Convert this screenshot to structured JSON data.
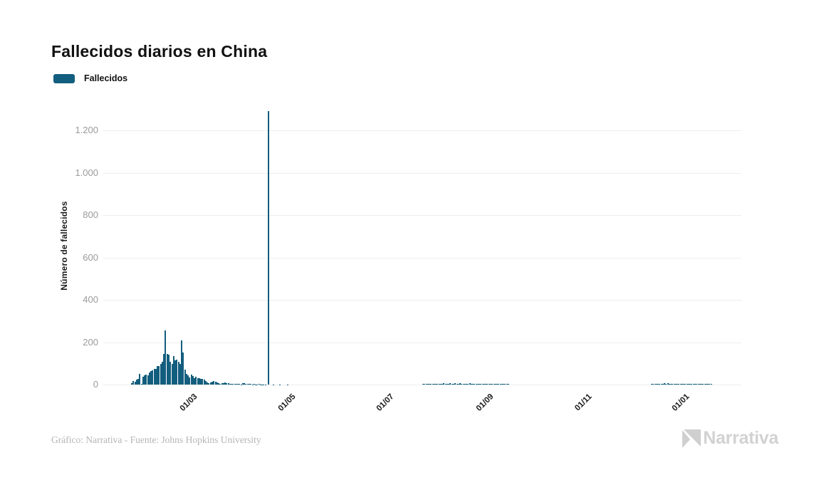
{
  "page": {
    "title": "Fallecidos diarios en China"
  },
  "legend": {
    "label": "Fallecidos",
    "swatch_color": "#135E7E"
  },
  "footer": {
    "credit": "Gráfico: Narrativa - Fuente: Johns Hopkins University",
    "brand": "Narrativa"
  },
  "chart_data": {
    "type": "bar",
    "title": "Fallecidos diarios en China",
    "xlabel": "",
    "ylabel": "Número de fallecidos",
    "series_name": "Fallecidos",
    "bar_color": "#135E7E",
    "grid": true,
    "legend_position": "top-left",
    "ylim": [
      0,
      1300
    ],
    "y_ticks": [
      0,
      200,
      400,
      600,
      800,
      1000,
      1200
    ],
    "y_tick_labels": [
      "0",
      "200",
      "400",
      "600",
      "800",
      "1.000",
      "1.200"
    ],
    "x_tick_labels": [
      "01/03",
      "01/05",
      "01/07",
      "01/09",
      "01/11",
      "01/01"
    ],
    "x_ticks": [
      {
        "label": "01/03",
        "day_index": 38
      },
      {
        "label": "01/05",
        "day_index": 99
      },
      {
        "label": "01/07",
        "day_index": 160
      },
      {
        "label": "01/09",
        "day_index": 222
      },
      {
        "label": "01/11",
        "day_index": 283
      },
      {
        "label": "01/01",
        "day_index": 344
      }
    ],
    "start_date": "2020-01-23",
    "end_date": "2021-01-17",
    "notable_points": [
      {
        "date": "2020-02-13",
        "value": 254
      },
      {
        "date": "2020-02-23",
        "value": 210
      },
      {
        "date": "2020-04-17",
        "value": 1290
      }
    ],
    "values": [
      8,
      16,
      15,
      24,
      26,
      49,
      2,
      38,
      43,
      46,
      45,
      58,
      64,
      66,
      73,
      73,
      86,
      89,
      97,
      108,
      146,
      254,
      143,
      142,
      106,
      98,
      136,
      115,
      118,
      109,
      97,
      210,
      150,
      71,
      52,
      44,
      35,
      47,
      42,
      31,
      38,
      31,
      30,
      28,
      27,
      22,
      17,
      11,
      7,
      11,
      13,
      16,
      14,
      11,
      8,
      3,
      7,
      6,
      9,
      7,
      6,
      5,
      4,
      5,
      3,
      3,
      5,
      4,
      1,
      7,
      6,
      4,
      3,
      2,
      2,
      1,
      2,
      1,
      1,
      2,
      1,
      1,
      1,
      1,
      0,
      1290,
      0,
      0,
      1,
      0,
      0,
      0,
      1,
      0,
      0,
      0,
      0,
      1,
      0,
      0,
      0,
      0,
      0,
      0,
      0,
      0,
      0,
      0,
      0,
      0,
      0,
      0,
      0,
      0,
      0,
      0,
      0,
      0,
      0,
      0,
      0,
      0,
      0,
      0,
      0,
      0,
      0,
      0,
      0,
      0,
      0,
      0,
      0,
      0,
      0,
      0,
      0,
      0,
      0,
      0,
      0,
      0,
      0,
      0,
      0,
      0,
      0,
      0,
      0,
      0,
      0,
      0,
      0,
      0,
      0,
      0,
      0,
      0,
      0,
      0,
      0,
      0,
      0,
      0,
      0,
      0,
      0,
      0,
      0,
      0,
      0,
      0,
      0,
      0,
      0,
      0,
      0,
      0,
      0,
      0,
      0,
      2,
      3,
      2,
      4,
      3,
      2,
      5,
      4,
      3,
      2,
      4,
      5,
      3,
      6,
      4,
      3,
      5,
      6,
      4,
      3,
      7,
      5,
      4,
      6,
      5,
      4,
      3,
      5,
      4,
      6,
      5,
      3,
      4,
      5,
      3,
      4,
      3,
      2,
      3,
      2,
      3,
      4,
      3,
      5,
      4,
      3,
      4,
      2,
      3,
      4,
      2,
      3,
      5,
      4,
      0,
      0,
      0,
      0,
      0,
      0,
      0,
      0,
      0,
      0,
      0,
      0,
      0,
      0,
      0,
      0,
      0,
      0,
      0,
      0,
      0,
      0,
      0,
      0,
      0,
      0,
      0,
      0,
      0,
      0,
      0,
      0,
      0,
      0,
      0,
      0,
      0,
      0,
      0,
      0,
      0,
      0,
      0,
      0,
      0,
      0,
      0,
      0,
      0,
      0,
      0,
      0,
      0,
      0,
      0,
      0,
      0,
      0,
      0,
      0,
      0,
      0,
      0,
      0,
      0,
      0,
      0,
      0,
      0,
      0,
      0,
      0,
      0,
      0,
      0,
      0,
      0,
      0,
      0,
      0,
      0,
      0,
      0,
      0,
      0,
      0,
      0,
      0,
      2,
      3,
      2,
      4,
      3,
      5,
      4,
      3,
      6,
      5,
      7,
      4,
      3,
      5,
      4,
      3,
      4,
      5,
      3,
      4,
      2,
      3,
      4,
      2,
      5,
      3,
      4,
      3,
      2,
      4,
      3,
      2,
      3,
      4,
      2,
      3,
      2,
      2
    ]
  }
}
